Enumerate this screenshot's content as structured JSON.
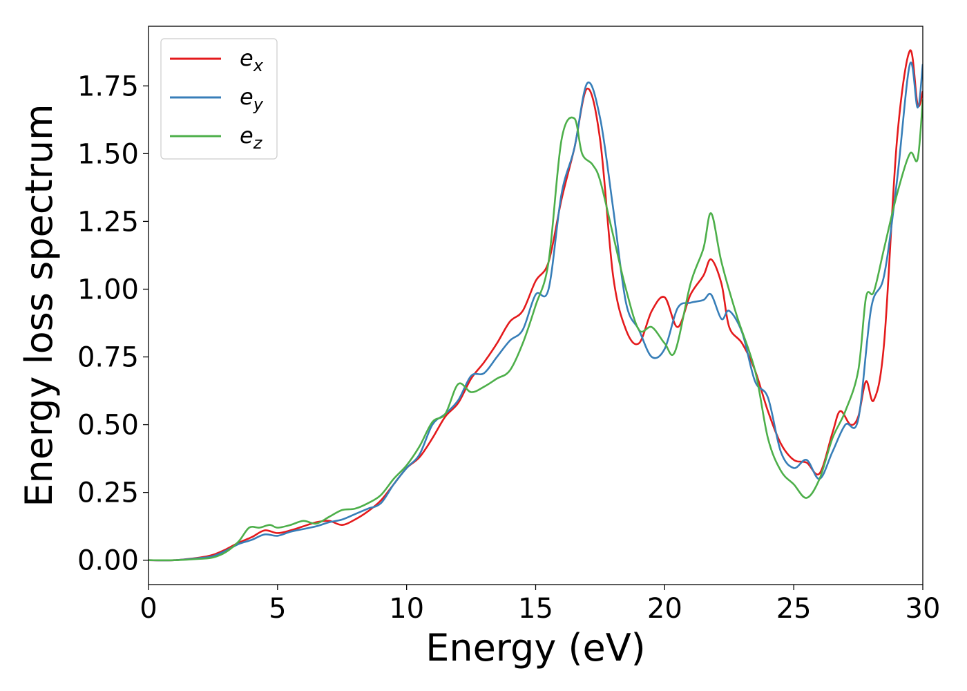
{
  "chart_data": {
    "type": "line",
    "xlabel": "Energy (eV)",
    "ylabel": "Energy loss spectrum",
    "xlim": [
      0,
      30
    ],
    "ylim": [
      -0.09,
      1.97
    ],
    "xticks": [
      0,
      5,
      10,
      15,
      20,
      25,
      30
    ],
    "xtick_labels": [
      "0",
      "5",
      "10",
      "15",
      "20",
      "25",
      "30"
    ],
    "yticks": [
      0.0,
      0.25,
      0.5,
      0.75,
      1.0,
      1.25,
      1.5,
      1.75
    ],
    "ytick_labels": [
      "0.00",
      "0.25",
      "0.50",
      "0.75",
      "1.00",
      "1.25",
      "1.50",
      "1.75"
    ],
    "grid": false,
    "legend_position": "top-left",
    "series": [
      {
        "name": "e_x",
        "legend_base": "e",
        "legend_sub": "x",
        "color": "#e41a1c",
        "points": [
          [
            0,
            0
          ],
          [
            1,
            0.0
          ],
          [
            2,
            0.01
          ],
          [
            2.5,
            0.02
          ],
          [
            3,
            0.04
          ],
          [
            3.5,
            0.065
          ],
          [
            4,
            0.085
          ],
          [
            4.5,
            0.11
          ],
          [
            5,
            0.1
          ],
          [
            5.5,
            0.11
          ],
          [
            6,
            0.125
          ],
          [
            6.5,
            0.14
          ],
          [
            7,
            0.145
          ],
          [
            7.5,
            0.13
          ],
          [
            8,
            0.15
          ],
          [
            8.5,
            0.18
          ],
          [
            9,
            0.22
          ],
          [
            9.5,
            0.28
          ],
          [
            10,
            0.34
          ],
          [
            10.5,
            0.38
          ],
          [
            11,
            0.45
          ],
          [
            11.5,
            0.53
          ],
          [
            12,
            0.58
          ],
          [
            12.5,
            0.67
          ],
          [
            13,
            0.73
          ],
          [
            13.5,
            0.8
          ],
          [
            14,
            0.88
          ],
          [
            14.5,
            0.92
          ],
          [
            15,
            1.03
          ],
          [
            15.5,
            1.1
          ],
          [
            16,
            1.33
          ],
          [
            16.5,
            1.52
          ],
          [
            17,
            1.74
          ],
          [
            17.5,
            1.55
          ],
          [
            18,
            1.05
          ],
          [
            18.5,
            0.85
          ],
          [
            19,
            0.8
          ],
          [
            19.5,
            0.92
          ],
          [
            20,
            0.97
          ],
          [
            20.5,
            0.86
          ],
          [
            21,
            0.98
          ],
          [
            21.5,
            1.05
          ],
          [
            21.8,
            1.11
          ],
          [
            22.2,
            1.02
          ],
          [
            22.5,
            0.86
          ],
          [
            23,
            0.8
          ],
          [
            23.5,
            0.7
          ],
          [
            24,
            0.55
          ],
          [
            24.5,
            0.43
          ],
          [
            25,
            0.37
          ],
          [
            25.5,
            0.36
          ],
          [
            26,
            0.32
          ],
          [
            26.5,
            0.47
          ],
          [
            26.8,
            0.55
          ],
          [
            27.2,
            0.5
          ],
          [
            27.5,
            0.53
          ],
          [
            27.8,
            0.66
          ],
          [
            28.1,
            0.59
          ],
          [
            28.5,
            0.8
          ],
          [
            29,
            1.55
          ],
          [
            29.5,
            1.88
          ],
          [
            29.8,
            1.68
          ],
          [
            30,
            1.73
          ]
        ]
      },
      {
        "name": "e_y",
        "legend_base": "e",
        "legend_sub": "y",
        "color": "#377eb8",
        "points": [
          [
            0,
            0
          ],
          [
            1,
            0.0
          ],
          [
            2,
            0.008
          ],
          [
            2.5,
            0.015
          ],
          [
            3,
            0.035
          ],
          [
            3.5,
            0.06
          ],
          [
            4,
            0.075
          ],
          [
            4.5,
            0.095
          ],
          [
            5,
            0.09
          ],
          [
            5.5,
            0.105
          ],
          [
            6,
            0.115
          ],
          [
            6.5,
            0.125
          ],
          [
            7,
            0.14
          ],
          [
            7.5,
            0.15
          ],
          [
            8,
            0.17
          ],
          [
            8.5,
            0.19
          ],
          [
            9,
            0.21
          ],
          [
            9.5,
            0.28
          ],
          [
            10,
            0.34
          ],
          [
            10.5,
            0.39
          ],
          [
            11,
            0.5
          ],
          [
            11.5,
            0.54
          ],
          [
            12,
            0.59
          ],
          [
            12.5,
            0.68
          ],
          [
            13,
            0.69
          ],
          [
            13.5,
            0.75
          ],
          [
            14,
            0.81
          ],
          [
            14.5,
            0.85
          ],
          [
            15,
            0.98
          ],
          [
            15.5,
            1.0
          ],
          [
            16,
            1.35
          ],
          [
            16.5,
            1.52
          ],
          [
            17,
            1.76
          ],
          [
            17.5,
            1.63
          ],
          [
            18,
            1.3
          ],
          [
            18.5,
            0.95
          ],
          [
            19,
            0.85
          ],
          [
            19.5,
            0.75
          ],
          [
            20,
            0.78
          ],
          [
            20.5,
            0.93
          ],
          [
            21,
            0.95
          ],
          [
            21.5,
            0.96
          ],
          [
            21.8,
            0.98
          ],
          [
            22.2,
            0.89
          ],
          [
            22.5,
            0.92
          ],
          [
            23,
            0.84
          ],
          [
            23.5,
            0.66
          ],
          [
            24,
            0.6
          ],
          [
            24.5,
            0.4
          ],
          [
            25,
            0.34
          ],
          [
            25.5,
            0.37
          ],
          [
            26,
            0.3
          ],
          [
            26.5,
            0.4
          ],
          [
            27,
            0.5
          ],
          [
            27.5,
            0.52
          ],
          [
            28,
            0.93
          ],
          [
            28.5,
            1.05
          ],
          [
            29,
            1.4
          ],
          [
            29.5,
            1.83
          ],
          [
            29.8,
            1.67
          ],
          [
            30,
            1.83
          ]
        ]
      },
      {
        "name": "e_z",
        "legend_base": "e",
        "legend_sub": "z",
        "color": "#4daf4a",
        "points": [
          [
            0,
            0
          ],
          [
            1,
            0.0
          ],
          [
            2,
            0.005
          ],
          [
            2.5,
            0.01
          ],
          [
            3,
            0.03
          ],
          [
            3.5,
            0.07
          ],
          [
            3.9,
            0.12
          ],
          [
            4.3,
            0.12
          ],
          [
            4.7,
            0.13
          ],
          [
            5,
            0.12
          ],
          [
            5.5,
            0.13
          ],
          [
            6,
            0.145
          ],
          [
            6.5,
            0.135
          ],
          [
            7,
            0.16
          ],
          [
            7.5,
            0.185
          ],
          [
            8,
            0.19
          ],
          [
            8.5,
            0.21
          ],
          [
            9,
            0.24
          ],
          [
            9.5,
            0.3
          ],
          [
            10,
            0.35
          ],
          [
            10.5,
            0.42
          ],
          [
            11,
            0.51
          ],
          [
            11.5,
            0.54
          ],
          [
            12,
            0.65
          ],
          [
            12.5,
            0.62
          ],
          [
            13,
            0.64
          ],
          [
            13.5,
            0.67
          ],
          [
            14,
            0.7
          ],
          [
            14.5,
            0.8
          ],
          [
            15,
            0.94
          ],
          [
            15.5,
            1.1
          ],
          [
            16,
            1.55
          ],
          [
            16.5,
            1.63
          ],
          [
            16.8,
            1.5
          ],
          [
            17.2,
            1.46
          ],
          [
            17.5,
            1.4
          ],
          [
            18,
            1.2
          ],
          [
            18.5,
            1.0
          ],
          [
            19,
            0.85
          ],
          [
            19.5,
            0.86
          ],
          [
            20,
            0.8
          ],
          [
            20.4,
            0.77
          ],
          [
            21,
            1.02
          ],
          [
            21.5,
            1.15
          ],
          [
            21.8,
            1.28
          ],
          [
            22.2,
            1.1
          ],
          [
            22.8,
            0.9
          ],
          [
            23.5,
            0.7
          ],
          [
            24,
            0.45
          ],
          [
            24.5,
            0.33
          ],
          [
            25,
            0.28
          ],
          [
            25.5,
            0.23
          ],
          [
            26,
            0.3
          ],
          [
            26.5,
            0.45
          ],
          [
            27,
            0.55
          ],
          [
            27.5,
            0.7
          ],
          [
            27.8,
            0.97
          ],
          [
            28.1,
            0.99
          ],
          [
            28.5,
            1.15
          ],
          [
            29,
            1.35
          ],
          [
            29.5,
            1.5
          ],
          [
            29.8,
            1.48
          ],
          [
            30,
            1.7
          ]
        ]
      }
    ]
  }
}
